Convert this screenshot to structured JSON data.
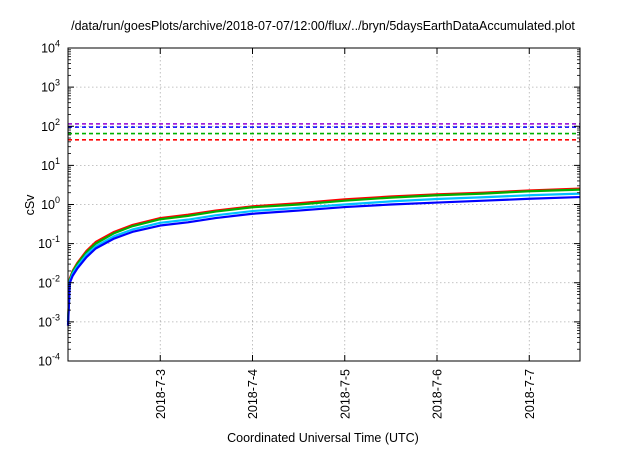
{
  "chart_data": {
    "type": "line",
    "title": "/data/run/goesPlots/archive/2018-07-07/12:00/flux/../bryn/5daysEarthDataAccumulated.plot",
    "xlabel": "Coordinated Universal Time (UTC)",
    "ylabel": "cSv",
    "yscale": "log",
    "ylim": [
      0.0001,
      10000
    ],
    "xlim": [
      0,
      5.55
    ],
    "grid": true,
    "y_ticks": [
      {
        "base": "10",
        "exp": "-4",
        "value": 0.0001
      },
      {
        "base": "10",
        "exp": "-3",
        "value": 0.001
      },
      {
        "base": "10",
        "exp": "-2",
        "value": 0.01
      },
      {
        "base": "10",
        "exp": "-1",
        "value": 0.1
      },
      {
        "base": "10",
        "exp": "0",
        "value": 1
      },
      {
        "base": "10",
        "exp": "1",
        "value": 10
      },
      {
        "base": "10",
        "exp": "2",
        "value": 100
      },
      {
        "base": "10",
        "exp": "3",
        "value": 1000
      },
      {
        "base": "10",
        "exp": "4",
        "value": 10000
      }
    ],
    "x_ticks": [
      {
        "label": "2018-7-3",
        "value": 1
      },
      {
        "label": "2018-7-4",
        "value": 2
      },
      {
        "label": "2018-7-5",
        "value": 3
      },
      {
        "label": "2018-7-6",
        "value": 4
      },
      {
        "label": "2018-7-7",
        "value": 5
      }
    ],
    "thresholds": [
      {
        "color": "#9400d3",
        "value": 115
      },
      {
        "color": "#0000ff",
        "value": 95
      },
      {
        "color": "#00b000",
        "value": 65
      },
      {
        "color": "#ff0000",
        "value": 45
      }
    ],
    "series": [
      {
        "color": "#ff0000",
        "x": [
          0,
          0.02,
          0.05,
          0.1,
          0.2,
          0.3,
          0.5,
          0.7,
          1.0,
          1.3,
          1.6,
          2.0,
          2.5,
          3.0,
          3.5,
          4.0,
          4.5,
          5.0,
          5.55
        ],
        "y": [
          0.001,
          0.013,
          0.02,
          0.032,
          0.065,
          0.11,
          0.2,
          0.3,
          0.45,
          0.55,
          0.7,
          0.9,
          1.08,
          1.35,
          1.6,
          1.82,
          2.0,
          2.28,
          2.55
        ]
      },
      {
        "color": "#00b000",
        "x": [
          0,
          0.02,
          0.05,
          0.1,
          0.2,
          0.3,
          0.5,
          0.7,
          1.0,
          1.3,
          1.6,
          2.0,
          2.5,
          3.0,
          3.5,
          4.0,
          4.5,
          5.0,
          5.55
        ],
        "y": [
          0.001,
          0.012,
          0.019,
          0.03,
          0.06,
          0.1,
          0.185,
          0.28,
          0.42,
          0.51,
          0.66,
          0.85,
          1.0,
          1.25,
          1.5,
          1.72,
          1.9,
          2.18,
          2.4
        ]
      },
      {
        "color": "#00bfff",
        "x": [
          0,
          0.02,
          0.05,
          0.1,
          0.2,
          0.3,
          0.5,
          0.7,
          1.0,
          1.3,
          1.6,
          2.0,
          2.5,
          3.0,
          3.5,
          4.0,
          4.5,
          5.0,
          5.55
        ],
        "y": [
          0.0009,
          0.011,
          0.017,
          0.026,
          0.052,
          0.085,
          0.155,
          0.23,
          0.34,
          0.41,
          0.53,
          0.68,
          0.82,
          1.0,
          1.2,
          1.38,
          1.53,
          1.72,
          1.9
        ]
      },
      {
        "color": "#0000ff",
        "x": [
          0,
          0.02,
          0.05,
          0.1,
          0.2,
          0.3,
          0.5,
          0.7,
          1.0,
          1.3,
          1.6,
          2.0,
          2.5,
          3.0,
          3.5,
          4.0,
          4.5,
          5.0,
          5.55
        ],
        "y": [
          0.0008,
          0.01,
          0.015,
          0.023,
          0.045,
          0.075,
          0.135,
          0.2,
          0.29,
          0.35,
          0.45,
          0.58,
          0.7,
          0.86,
          1.0,
          1.12,
          1.25,
          1.4,
          1.55
        ]
      }
    ]
  }
}
